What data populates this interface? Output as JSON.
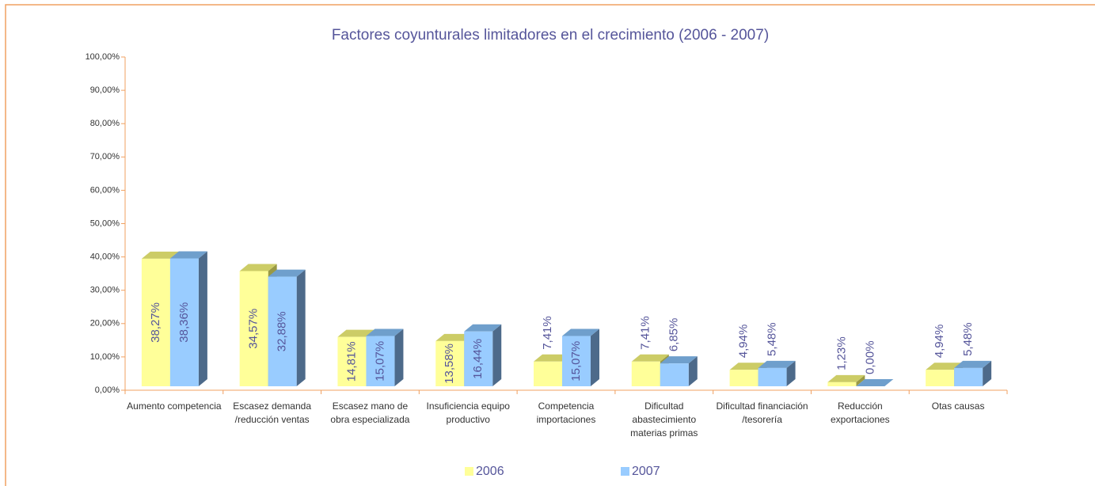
{
  "chart_data": {
    "type": "bar3d",
    "title": "Factores coyunturales limitadores en el crecimiento (2006 - 2007)",
    "categories": [
      "Aumento competencia",
      "Escasez demanda /reducción ventas",
      "Escasez mano de obra especializada",
      "Insuficiencia equipo productivo",
      "Competencia importaciones",
      "Dificultad abastecimiento materias primas",
      "Dificultad financiación /tesorería",
      "Reducción exportaciones",
      "Otas causas"
    ],
    "series": [
      {
        "name": "2006",
        "color": "#ffff99",
        "values": [
          38.27,
          34.57,
          14.81,
          13.58,
          7.41,
          7.41,
          4.94,
          1.23,
          4.94
        ],
        "value_labels": [
          "38,27%",
          "34,57%",
          "14,81%",
          "13,58%",
          "7,41%",
          "7,41%",
          "4,94%",
          "1,23%",
          "4,94%"
        ]
      },
      {
        "name": "2007",
        "color": "#99ccff",
        "values": [
          38.36,
          32.88,
          15.07,
          16.44,
          15.07,
          6.85,
          5.48,
          0.0,
          5.48
        ],
        "value_labels": [
          "38,36%",
          "32,88%",
          "15,07%",
          "16,44%",
          "15,07%",
          "6,85%",
          "5,48%",
          "0,00%",
          "5,48%"
        ]
      }
    ],
    "ylim": [
      0,
      100
    ],
    "yticks": [
      {
        "value": 0,
        "label": "0,00%"
      },
      {
        "value": 10,
        "label": "10,00%"
      },
      {
        "value": 20,
        "label": "20,00%"
      },
      {
        "value": 30,
        "label": "30,00%"
      },
      {
        "value": 40,
        "label": "40,00%"
      },
      {
        "value": 50,
        "label": "50,00%"
      },
      {
        "value": 60,
        "label": "60,00%"
      },
      {
        "value": 70,
        "label": "70,00%"
      },
      {
        "value": 80,
        "label": "80,00%"
      },
      {
        "value": 90,
        "label": "90,00%"
      },
      {
        "value": 100,
        "label": "100,00%"
      }
    ],
    "legend": "bottom"
  }
}
